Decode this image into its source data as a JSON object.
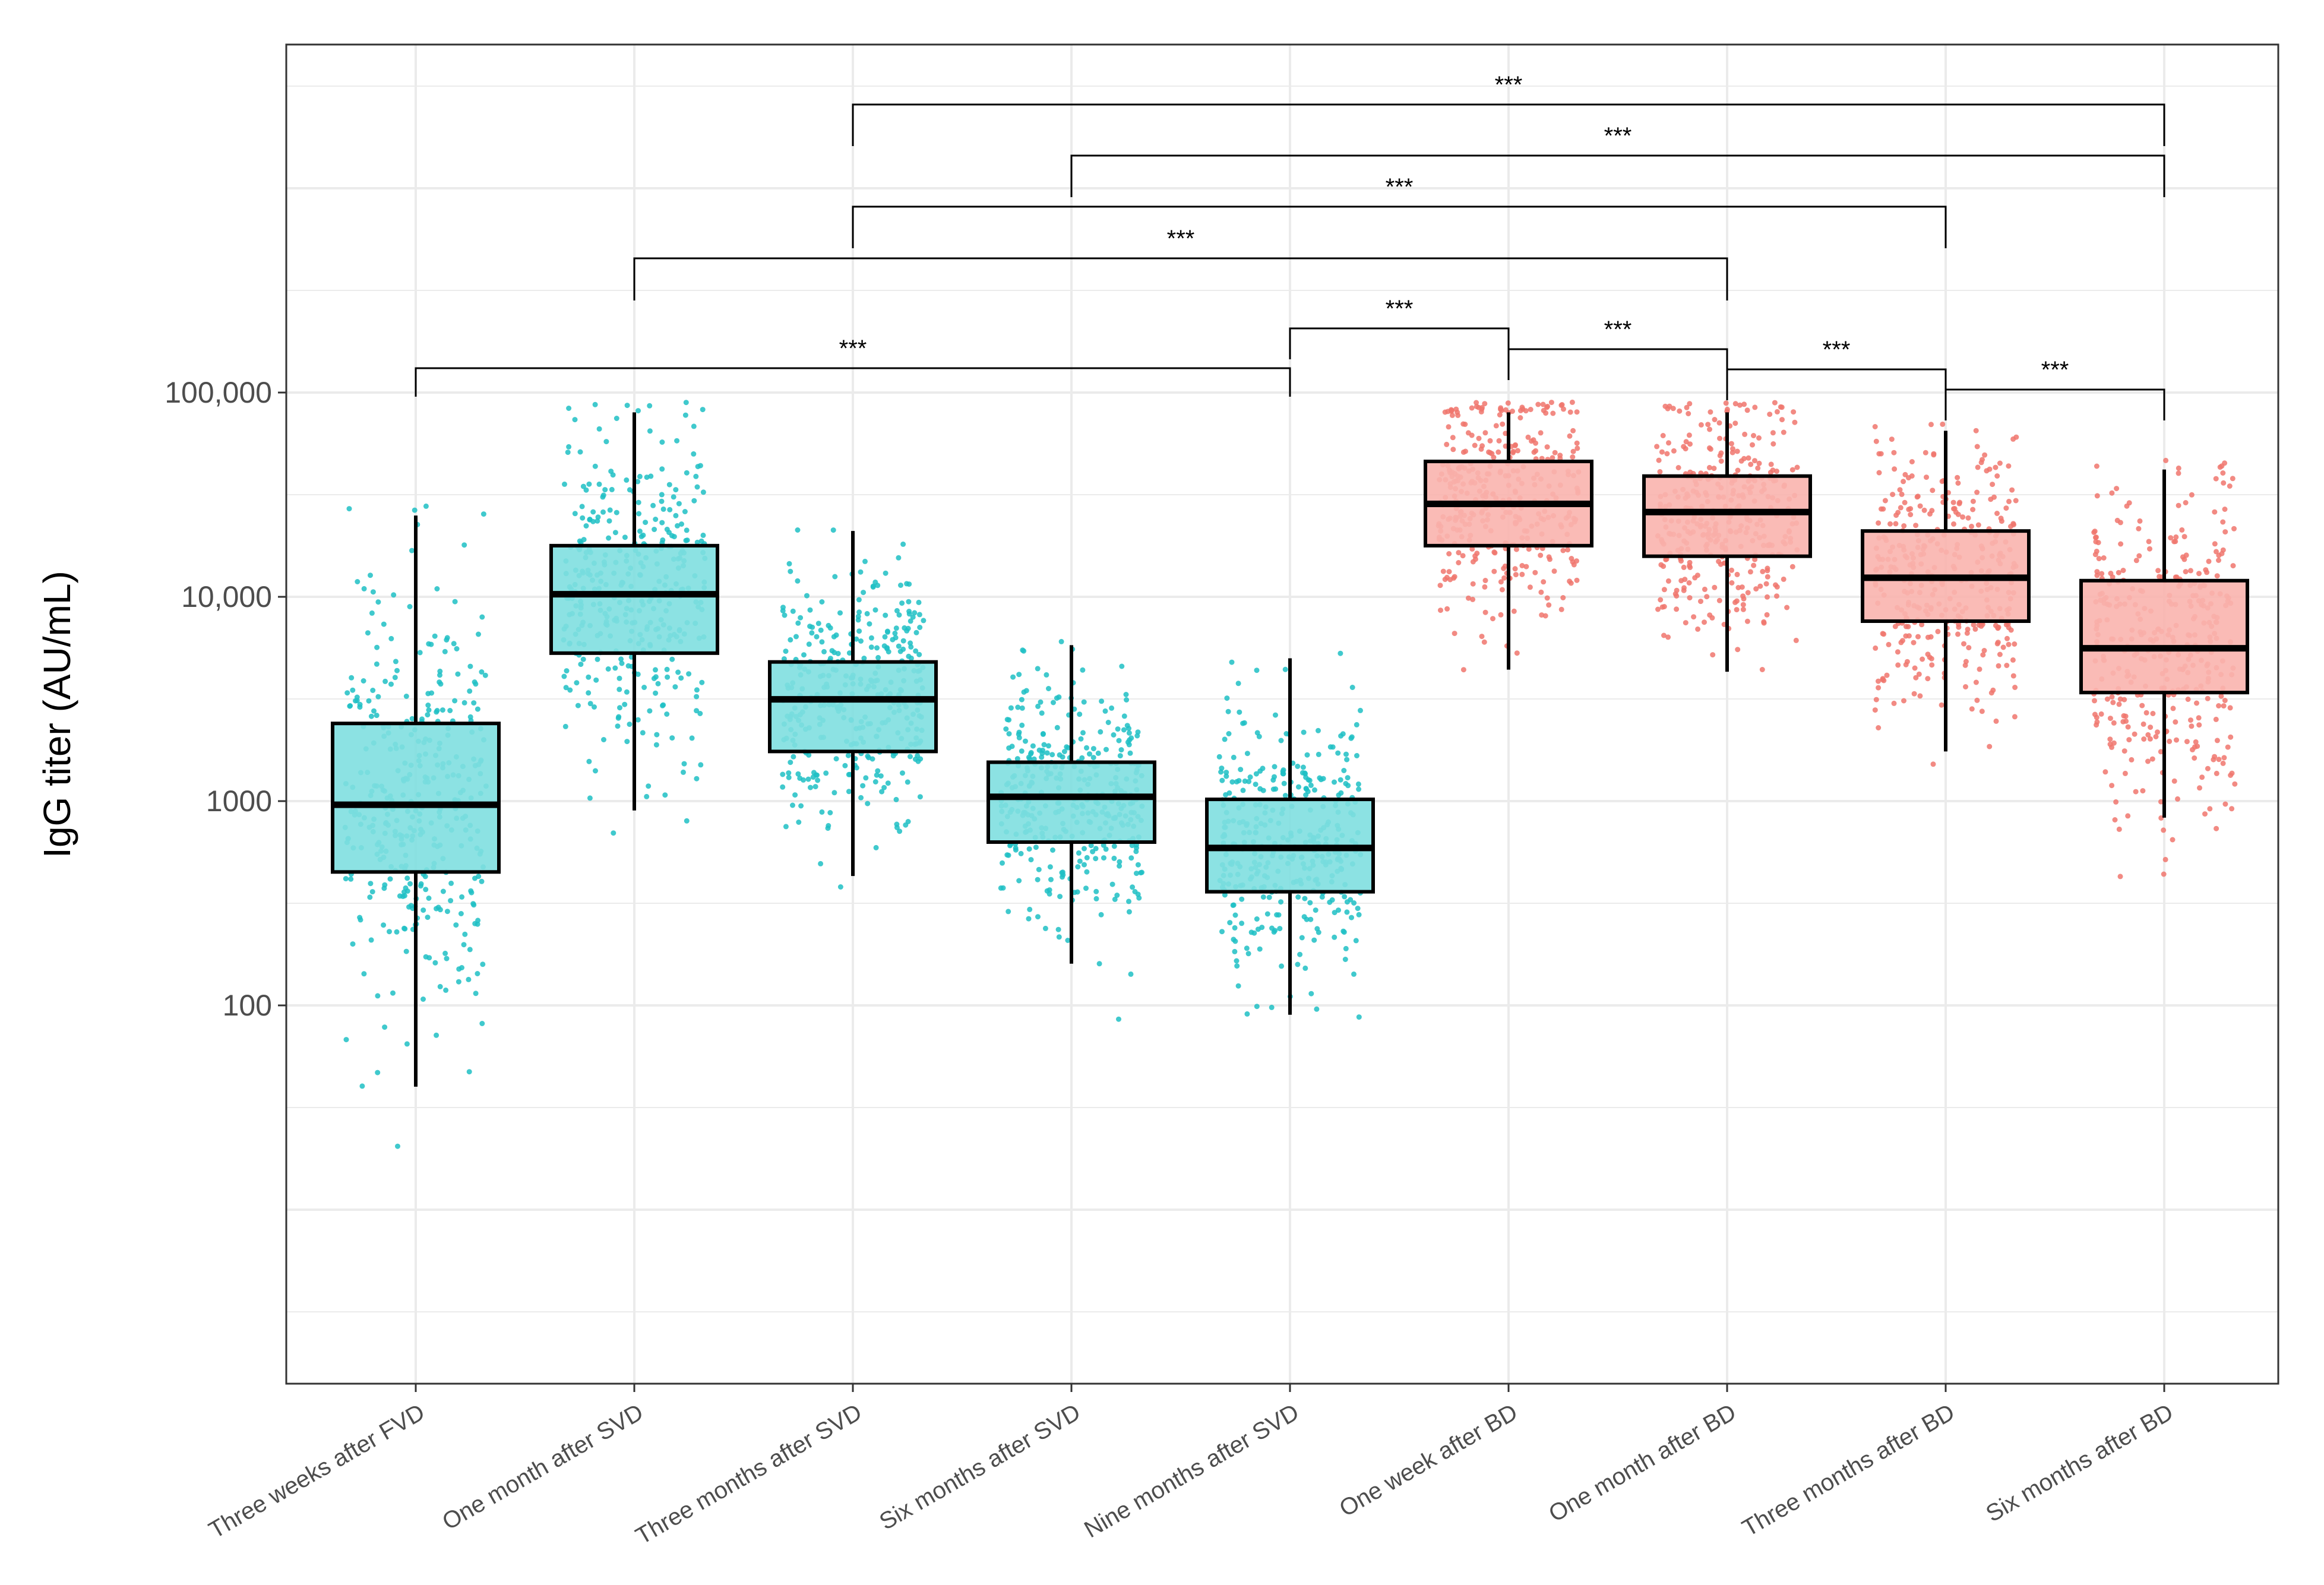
{
  "chart_data": {
    "type": "box",
    "title": "",
    "xlabel": "",
    "ylabel": "IgG titer (AU/mL)",
    "y_scale": "log10",
    "ylim": [
      0.3,
      2000000
    ],
    "y_ticks": [
      100,
      1000,
      10000,
      100000
    ],
    "y_tick_labels": [
      "100",
      "1000",
      "10,000",
      "100,000"
    ],
    "grid": true,
    "legend": "none",
    "colors": {
      "teal_fill": "#7fdfe0",
      "teal_points": "#1fbfc4",
      "salmon_fill": "#f9b4ae",
      "salmon_points": "#f0766d",
      "grid": "#ebebeb",
      "box_stroke": "#000000"
    },
    "categories": [
      "Three weeks after FVD",
      "One month after SVD",
      "Three months after SVD",
      "Six months after SVD",
      "Nine months after SVD",
      "One week after BD",
      "One month after BD",
      "Three months after BD",
      "Six months after BD"
    ],
    "groups": [
      "teal",
      "teal",
      "teal",
      "teal",
      "teal",
      "salmon",
      "salmon",
      "salmon",
      "salmon"
    ],
    "boxes": [
      {
        "whisker_low": 40,
        "q1": 450,
        "median": 960,
        "q3": 2400,
        "whisker_high": 25000
      },
      {
        "whisker_low": 900,
        "q1": 5300,
        "median": 10300,
        "q3": 17800,
        "whisker_high": 80000
      },
      {
        "whisker_low": 430,
        "q1": 1750,
        "median": 3150,
        "q3": 4800,
        "whisker_high": 21000
      },
      {
        "whisker_low": 160,
        "q1": 630,
        "median": 1050,
        "q3": 1550,
        "whisker_high": 5800
      },
      {
        "whisker_low": 90,
        "q1": 360,
        "median": 590,
        "q3": 1020,
        "whisker_high": 5000
      },
      {
        "whisker_low": 4400,
        "q1": 17800,
        "median": 28500,
        "q3": 46000,
        "whisker_high": 80000
      },
      {
        "whisker_low": 4300,
        "q1": 15800,
        "median": 26000,
        "q3": 39000,
        "whisker_high": 80000
      },
      {
        "whisker_low": 1750,
        "q1": 7600,
        "median": 12400,
        "q3": 21000,
        "whisker_high": 65000
      },
      {
        "whisker_low": 830,
        "q1": 3400,
        "median": 5600,
        "q3": 12000,
        "whisker_high": 42000
      }
    ],
    "comparisons": [
      {
        "from": "Three weeks after FVD",
        "to": "Nine months after SVD",
        "label": "***"
      },
      {
        "from": "Nine months after SVD",
        "to": "One week after BD",
        "label": "***"
      },
      {
        "from": "One week after BD",
        "to": "One month after BD",
        "label": "***"
      },
      {
        "from": "One month after BD",
        "to": "Three months after BD",
        "label": "***"
      },
      {
        "from": "Three months after BD",
        "to": "Six months after BD",
        "label": "***"
      },
      {
        "from": "One month after SVD",
        "to": "One month after BD",
        "label": "***"
      },
      {
        "from": "Three months after SVD",
        "to": "Three months after BD",
        "label": "***"
      },
      {
        "from": "Six months after SVD",
        "to": "Six months after BD",
        "label": "***"
      },
      {
        "from": "Three months after SVD",
        "to": "Six months after BD",
        "label": "***"
      }
    ],
    "points_per_group": 360
  }
}
